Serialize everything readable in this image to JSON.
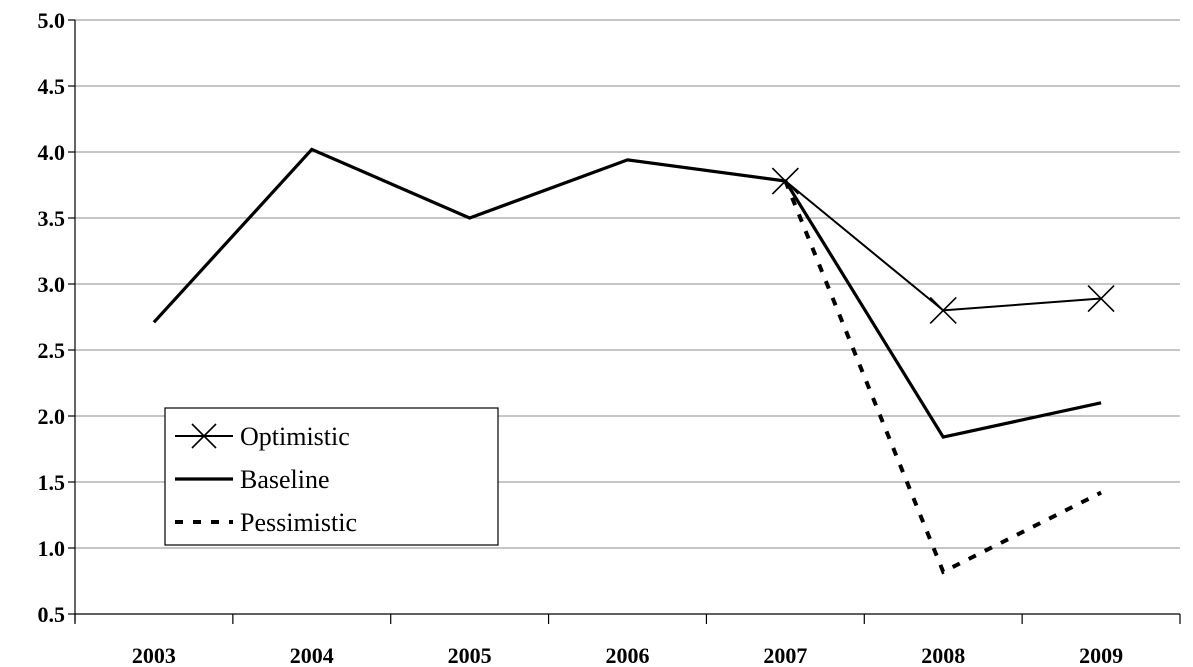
{
  "chart_data": {
    "type": "line",
    "categories": [
      "2003",
      "2004",
      "2005",
      "2006",
      "2007",
      "2008",
      "2009"
    ],
    "ylim": [
      0.5,
      5.0
    ],
    "yticks": [
      "0.5",
      "1.0",
      "1.5",
      "2.0",
      "2.5",
      "3.0",
      "3.5",
      "4.0",
      "4.5",
      "5.0"
    ],
    "grid": true,
    "legend_position": "lower-left",
    "series": [
      {
        "name": "Optimistic",
        "style": "thin-solid-x-marker",
        "color": "#000000",
        "values": [
          null,
          null,
          null,
          null,
          3.78,
          2.8,
          2.89
        ]
      },
      {
        "name": "Baseline",
        "style": "thick-solid",
        "color": "#000000",
        "values": [
          2.71,
          4.02,
          3.5,
          3.94,
          3.78,
          1.84,
          2.1
        ]
      },
      {
        "name": "Pessimistic",
        "style": "dotted",
        "color": "#000000",
        "values": [
          null,
          null,
          null,
          null,
          3.78,
          0.82,
          1.42
        ]
      }
    ]
  }
}
